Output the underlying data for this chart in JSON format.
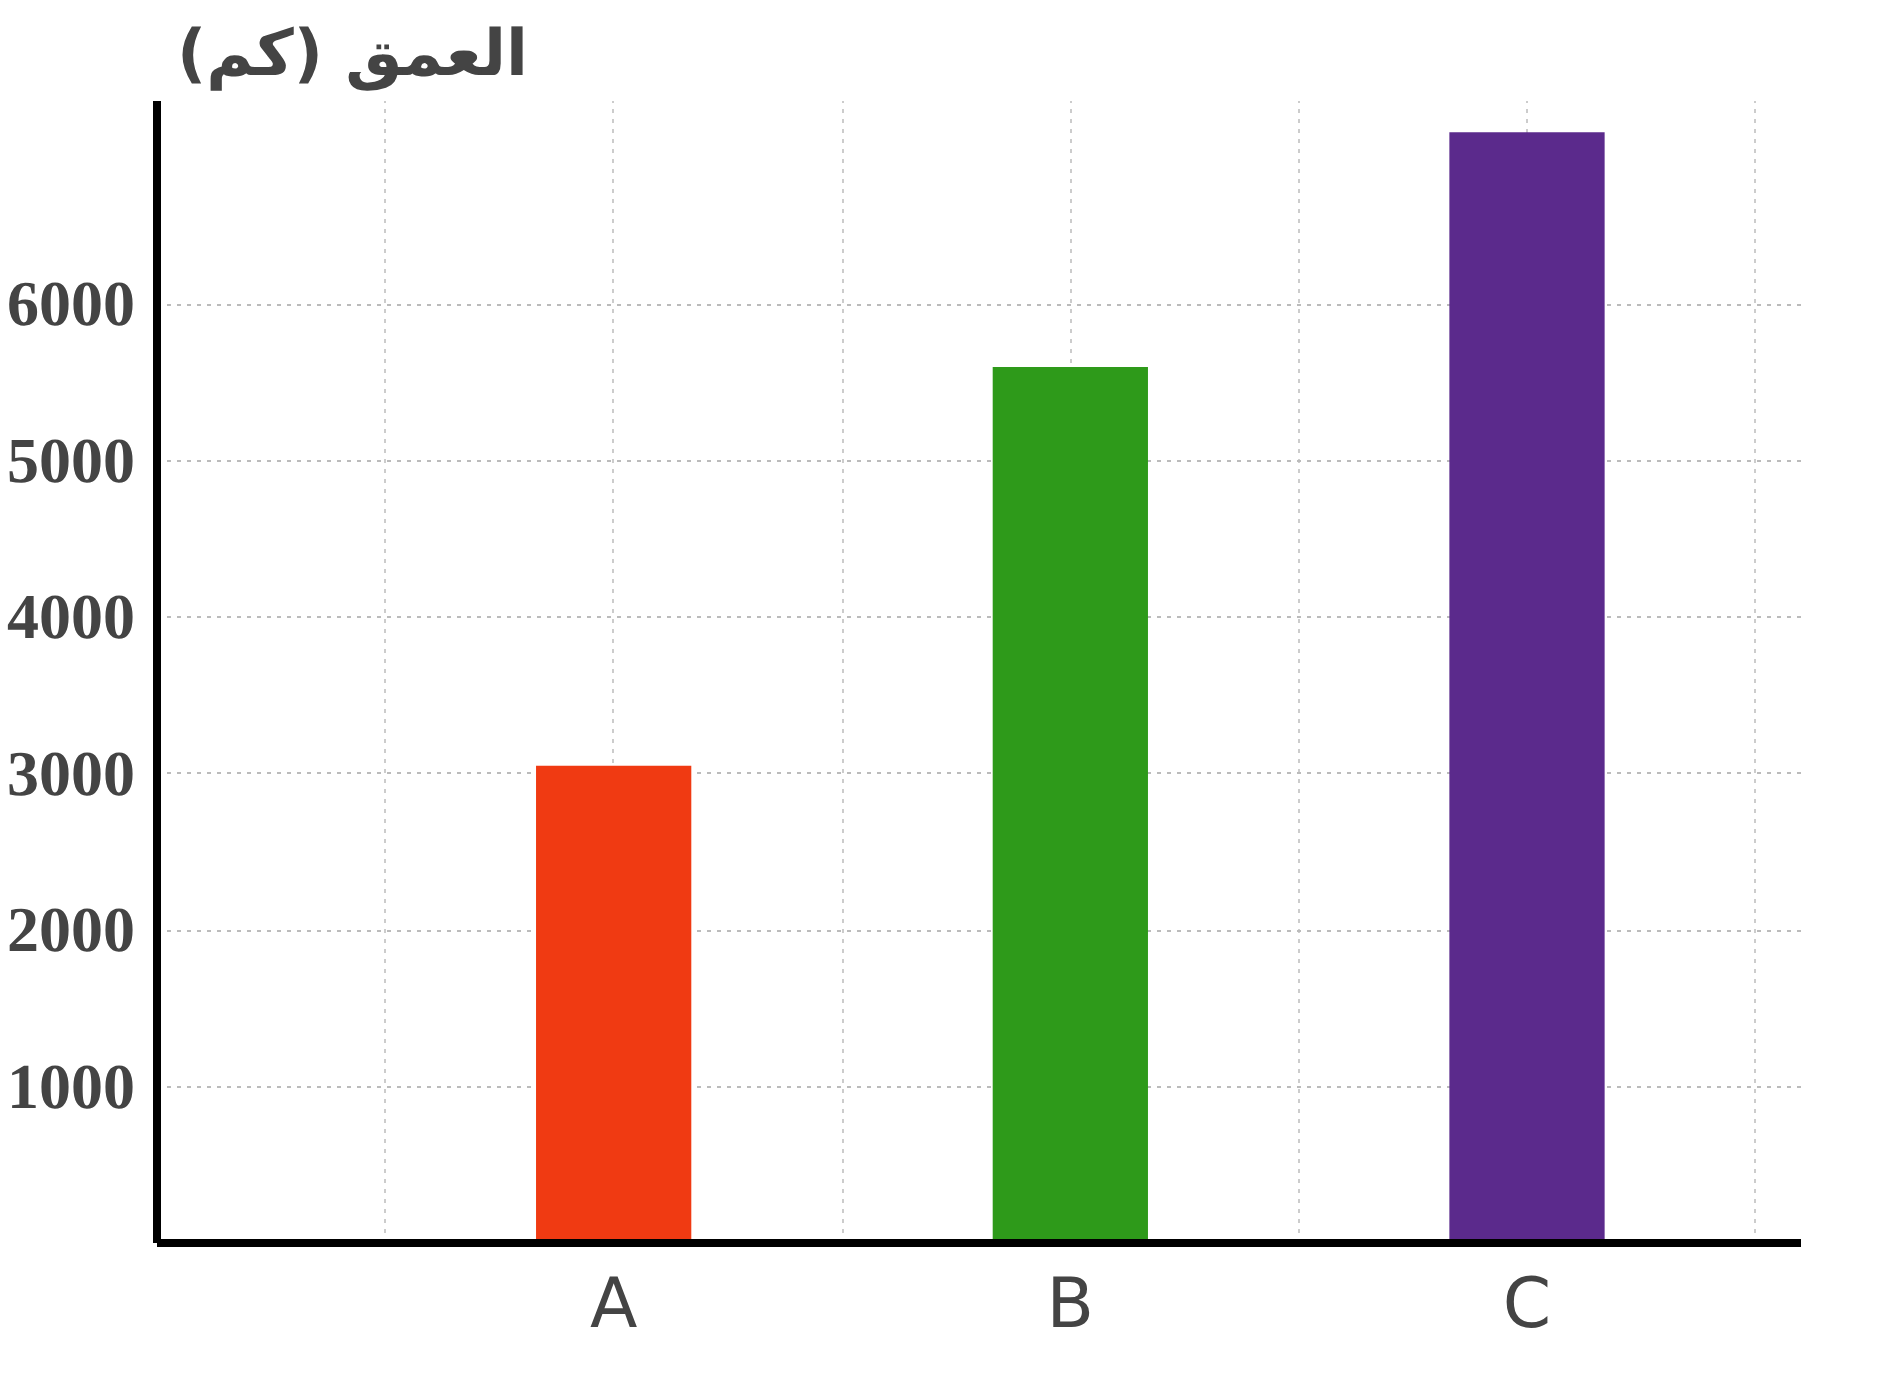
{
  "chart_data": {
    "type": "bar",
    "ylabel": "العمق (كم)",
    "categories": [
      "A",
      "B",
      "C"
    ],
    "values": [
      3050,
      5600,
      7100
    ],
    "colors": [
      "#f03a12",
      "#2e9a1a",
      "#5b2a8c"
    ],
    "ylim": [
      0,
      7300
    ],
    "yticks": [
      1000,
      2000,
      3000,
      4000,
      5000,
      6000
    ],
    "grid": true
  }
}
